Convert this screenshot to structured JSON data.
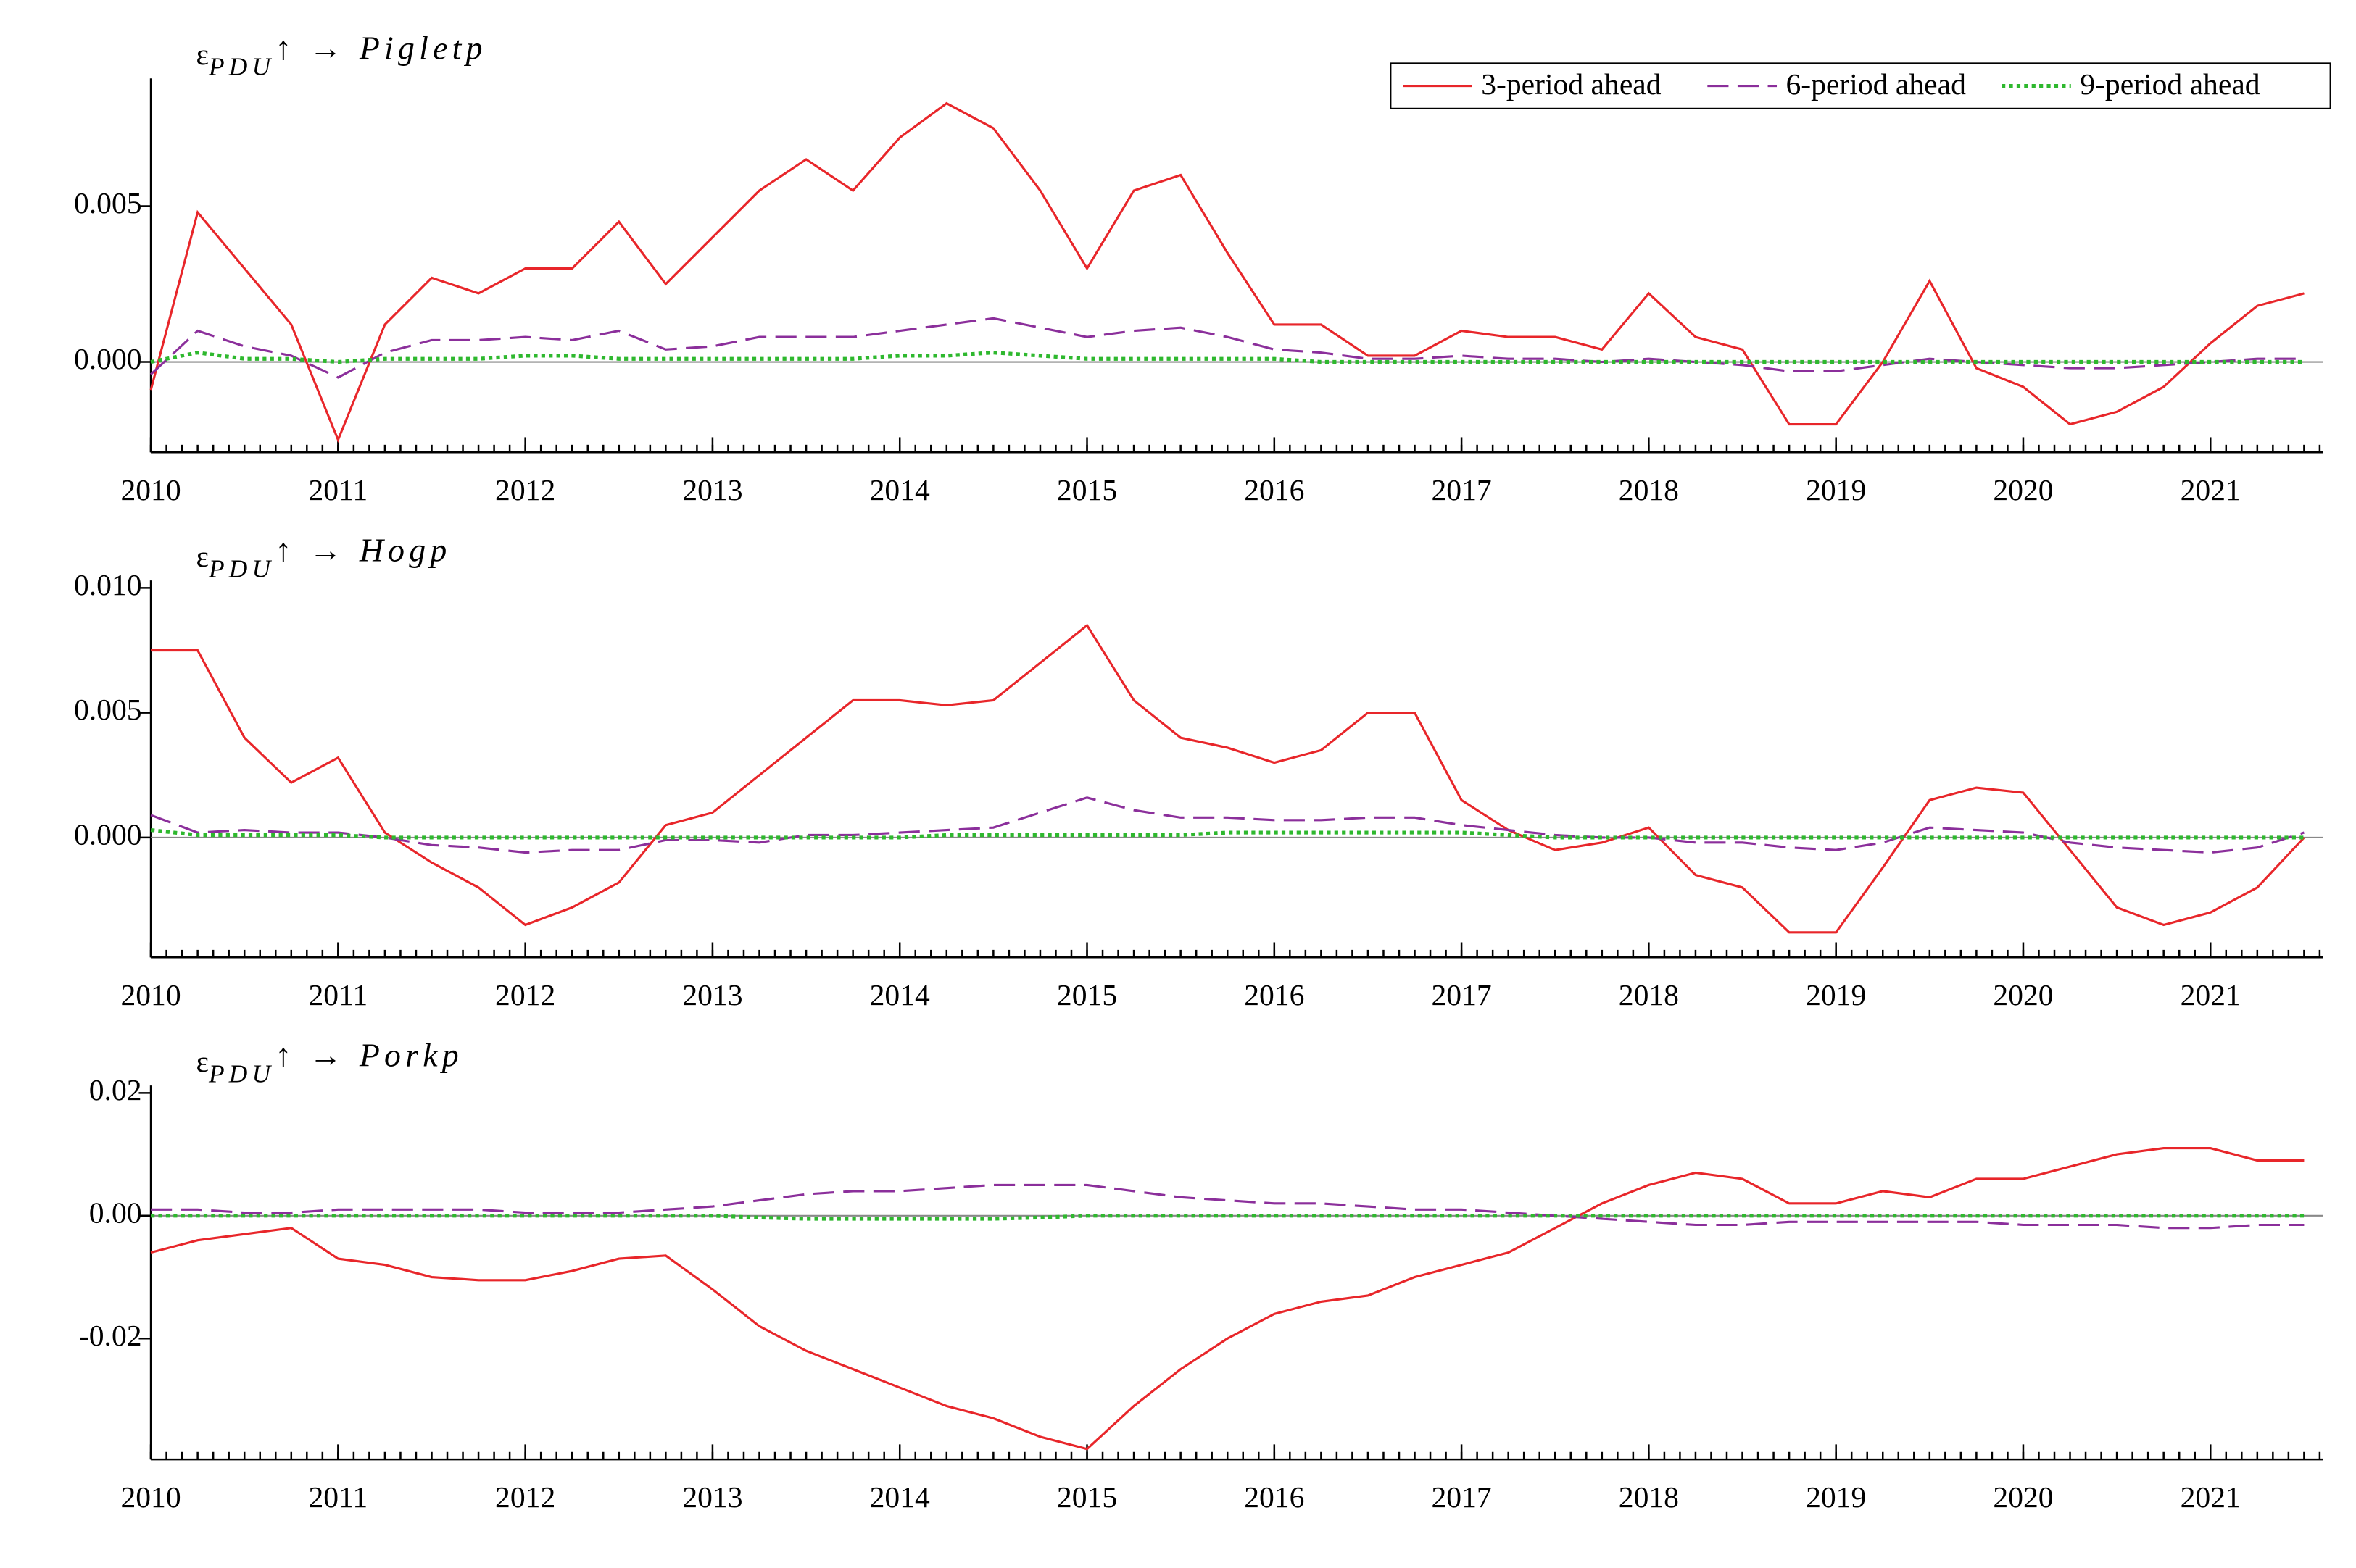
{
  "chart_data": [
    {
      "type": "line",
      "title": [
        "ε",
        "PDU",
        "↑ → Pigletp"
      ],
      "legend": "upper right",
      "x": [
        2010,
        2010.25,
        2010.5,
        2010.75,
        2011,
        2011.25,
        2011.5,
        2011.75,
        2012,
        2012.25,
        2012.5,
        2012.75,
        2013,
        2013.25,
        2013.5,
        2013.75,
        2014,
        2014.25,
        2014.5,
        2014.75,
        2015,
        2015.25,
        2015.5,
        2015.75,
        2016,
        2016.25,
        2016.5,
        2016.75,
        2017,
        2017.25,
        2017.5,
        2017.75,
        2018,
        2018.25,
        2018.5,
        2018.75,
        2019,
        2019.25,
        2019.5,
        2019.75,
        2020,
        2020.25,
        2020.5,
        2020.75,
        2021,
        2021.25,
        2021.5
      ],
      "xlim": [
        2010,
        2021.6
      ],
      "xticks": [
        2010,
        2011,
        2012,
        2013,
        2014,
        2015,
        2016,
        2017,
        2018,
        2019,
        2020,
        2021
      ],
      "ylim": [
        -0.0029,
        0.0091
      ],
      "yticks": [
        {
          "value": 0,
          "label": "0.000"
        },
        {
          "value": 0.005,
          "label": "0.005"
        }
      ],
      "series": [
        {
          "name": "3-period ahead",
          "color": "#e8262a",
          "dash": "solid",
          "values": [
            -0.0009,
            0.0048,
            0.003,
            0.0012,
            -0.0025,
            0.0012,
            0.0027,
            0.0022,
            0.003,
            0.003,
            0.0045,
            0.0025,
            0.004,
            0.0055,
            0.0065,
            0.0055,
            0.0072,
            0.0083,
            0.0075,
            0.0055,
            0.003,
            0.0055,
            0.006,
            0.0035,
            0.0012,
            0.0012,
            0.0002,
            0.0002,
            0.001,
            0.0008,
            0.0008,
            0.0004,
            0.0022,
            0.0008,
            0.0004,
            -0.002,
            -0.002,
            0,
            0.0026,
            -0.0002,
            -0.0008,
            -0.002,
            -0.0016,
            -0.0008,
            0.0006,
            0.0018,
            0.0022
          ]
        },
        {
          "name": "6-period ahead",
          "color": "#8b2f9b",
          "dash": "dashed",
          "values": [
            -0.0004,
            0.001,
            0.0005,
            0.0002,
            -0.0005,
            0.0003,
            0.0007,
            0.0007,
            0.0008,
            0.0007,
            0.001,
            0.0004,
            0.0005,
            0.0008,
            0.0008,
            0.0008,
            0.001,
            0.0012,
            0.0014,
            0.0011,
            0.0008,
            0.001,
            0.0011,
            0.0008,
            0.0004,
            0.0003,
            0.0001,
            0.0001,
            0.0002,
            0.0001,
            0.0001,
            0,
            0.0001,
            0,
            -0.0001,
            -0.0003,
            -0.0003,
            -0.0001,
            0.0001,
            0,
            -0.0001,
            -0.0002,
            -0.0002,
            -0.0001,
            0,
            0.0001,
            0.0001
          ]
        },
        {
          "name": "9-period ahead",
          "color": "#2eb82e",
          "dash": "dotted",
          "values": [
            0,
            0.0003,
            0.0001,
            0.0001,
            0,
            0.0001,
            0.0001,
            0.0001,
            0.0002,
            0.0002,
            0.0001,
            0.0001,
            0.0001,
            0.0001,
            0.0001,
            0.0001,
            0.0002,
            0.0002,
            0.0003,
            0.0002,
            0.0001,
            0.0001,
            0.0001,
            0.0001,
            0.0001,
            0,
            0,
            0,
            0,
            0,
            0,
            0,
            0,
            0,
            0,
            0,
            0,
            0,
            0,
            0,
            0,
            0,
            0,
            0,
            0,
            0,
            0
          ]
        }
      ]
    },
    {
      "type": "line",
      "title": [
        "ε",
        "PDU",
        "↑ → Hogp"
      ],
      "x": [
        2010,
        2010.25,
        2010.5,
        2010.75,
        2011,
        2011.25,
        2011.5,
        2011.75,
        2012,
        2012.25,
        2012.5,
        2012.75,
        2013,
        2013.25,
        2013.5,
        2013.75,
        2014,
        2014.25,
        2014.5,
        2014.75,
        2015,
        2015.25,
        2015.5,
        2015.75,
        2016,
        2016.25,
        2016.5,
        2016.75,
        2017,
        2017.25,
        2017.5,
        2017.75,
        2018,
        2018.25,
        2018.5,
        2018.75,
        2019,
        2019.25,
        2019.5,
        2019.75,
        2020,
        2020.25,
        2020.5,
        2020.75,
        2021,
        2021.25,
        2021.5
      ],
      "xlim": [
        2010,
        2021.6
      ],
      "xticks": [
        2010,
        2011,
        2012,
        2013,
        2014,
        2015,
        2016,
        2017,
        2018,
        2019,
        2020,
        2021
      ],
      "ylim": [
        -0.0048,
        0.0103
      ],
      "yticks": [
        {
          "value": 0,
          "label": "0.000"
        },
        {
          "value": 0.005,
          "label": "0.005"
        },
        {
          "value": 0.01,
          "label": "0.010"
        }
      ],
      "series": [
        {
          "color": "#e8262a",
          "dash": "solid",
          "values": [
            0.0075,
            0.0075,
            0.004,
            0.0022,
            0.0032,
            0.0002,
            -0.001,
            -0.002,
            -0.0035,
            -0.0028,
            -0.0018,
            0.0005,
            0.001,
            0.0025,
            0.004,
            0.0055,
            0.0055,
            0.0053,
            0.0055,
            0.007,
            0.0085,
            0.0055,
            0.004,
            0.0036,
            0.003,
            0.0035,
            0.005,
            0.005,
            0.0015,
            0.0003,
            -0.0005,
            -0.0002,
            0.0004,
            -0.0015,
            -0.002,
            -0.0038,
            -0.0038,
            -0.0012,
            0.0015,
            0.002,
            0.0018,
            -0.0005,
            -0.0028,
            -0.0035,
            -0.003,
            -0.002,
            0
          ]
        },
        {
          "color": "#8b2f9b",
          "dash": "dashed",
          "values": [
            0.0009,
            0.0002,
            0.0003,
            0.0002,
            0.0002,
            0,
            -0.0003,
            -0.0004,
            -0.0006,
            -0.0005,
            -0.0005,
            -0.0001,
            -0.0001,
            -0.0002,
            0.0001,
            0.0001,
            0.0002,
            0.0003,
            0.0004,
            0.001,
            0.0016,
            0.0011,
            0.0008,
            0.0008,
            0.0007,
            0.0007,
            0.0008,
            0.0008,
            0.0005,
            0.0003,
            0.0001,
            0,
            0,
            -0.0002,
            -0.0002,
            -0.0004,
            -0.0005,
            -0.0002,
            0.0004,
            0.0003,
            0.0002,
            -0.0002,
            -0.0004,
            -0.0005,
            -0.0006,
            -0.0004,
            0.0002
          ]
        },
        {
          "color": "#2eb82e",
          "dash": "dotted",
          "values": [
            0.0003,
            0.0001,
            0.0001,
            0.0001,
            0.0001,
            0,
            0,
            0,
            0,
            0,
            0,
            0,
            0,
            0,
            0,
            0,
            0,
            0.0001,
            0.0001,
            0.0001,
            0.0001,
            0.0001,
            0.0001,
            0.0002,
            0.0002,
            0.0002,
            0.0002,
            0.0002,
            0.0002,
            0.0001,
            0,
            0,
            0,
            0,
            0,
            0,
            0,
            0,
            0,
            0,
            0,
            0,
            0,
            0,
            0,
            0,
            0
          ]
        }
      ]
    },
    {
      "type": "line",
      "title": [
        "ε",
        "PDU",
        "↑ → Porkp"
      ],
      "x": [
        2010,
        2010.25,
        2010.5,
        2010.75,
        2011,
        2011.25,
        2011.5,
        2011.75,
        2012,
        2012.25,
        2012.5,
        2012.75,
        2013,
        2013.25,
        2013.5,
        2013.75,
        2014,
        2014.25,
        2014.5,
        2014.75,
        2015,
        2015.25,
        2015.5,
        2015.75,
        2016,
        2016.25,
        2016.5,
        2016.75,
        2017,
        2017.25,
        2017.5,
        2017.75,
        2018,
        2018.25,
        2018.5,
        2018.75,
        2019,
        2019.25,
        2019.5,
        2019.75,
        2020,
        2020.25,
        2020.5,
        2020.75,
        2021,
        2021.25,
        2021.5
      ],
      "xlim": [
        2010,
        2021.6
      ],
      "xticks": [
        2010,
        2011,
        2012,
        2013,
        2014,
        2015,
        2016,
        2017,
        2018,
        2019,
        2020,
        2021
      ],
      "ylim": [
        -0.0397,
        0.0212
      ],
      "yticks": [
        {
          "value": -0.02,
          "label": "-0.02"
        },
        {
          "value": 0,
          "label": "0.00"
        },
        {
          "value": 0.02,
          "label": "0.02"
        }
      ],
      "series": [
        {
          "color": "#e8262a",
          "dash": "solid",
          "values": [
            -0.006,
            -0.004,
            -0.003,
            -0.002,
            -0.007,
            -0.008,
            -0.01,
            -0.0105,
            -0.0105,
            -0.009,
            -0.007,
            -0.0065,
            -0.012,
            -0.018,
            -0.022,
            -0.025,
            -0.028,
            -0.031,
            -0.033,
            -0.036,
            -0.038,
            -0.031,
            -0.025,
            -0.02,
            -0.016,
            -0.014,
            -0.013,
            -0.01,
            -0.008,
            -0.006,
            -0.002,
            0.002,
            0.005,
            0.007,
            0.006,
            0.002,
            0.002,
            0.004,
            0.003,
            0.006,
            0.006,
            0.008,
            0.01,
            0.011,
            0.011,
            0.009,
            0.009
          ]
        },
        {
          "color": "#8b2f9b",
          "dash": "dashed",
          "values": [
            0.001,
            0.001,
            0.0005,
            0.0005,
            0.001,
            0.001,
            0.001,
            0.001,
            0.0005,
            0.0005,
            0.0005,
            0.001,
            0.0015,
            0.0025,
            0.0035,
            0.004,
            0.004,
            0.0045,
            0.005,
            0.005,
            0.005,
            0.004,
            0.003,
            0.0025,
            0.002,
            0.002,
            0.0015,
            0.001,
            0.001,
            0.0005,
            0,
            -0.0005,
            -0.001,
            -0.0015,
            -0.0015,
            -0.001,
            -0.001,
            -0.001,
            -0.001,
            -0.001,
            -0.0015,
            -0.0015,
            -0.0015,
            -0.002,
            -0.002,
            -0.0015,
            -0.0015
          ]
        },
        {
          "color": "#2eb82e",
          "dash": "dotted",
          "values": [
            0,
            0,
            0,
            0,
            0,
            0,
            0,
            0,
            0,
            0,
            0,
            0,
            0,
            -0.0003,
            -0.0005,
            -0.0005,
            -0.0005,
            -0.0005,
            -0.0005,
            -0.0003,
            0,
            0,
            0,
            0,
            0,
            0,
            0,
            0,
            0,
            0,
            0,
            0,
            0,
            0,
            0,
            0,
            0,
            0,
            0,
            0,
            0,
            0,
            0,
            0,
            0,
            0,
            0
          ]
        }
      ]
    }
  ]
}
